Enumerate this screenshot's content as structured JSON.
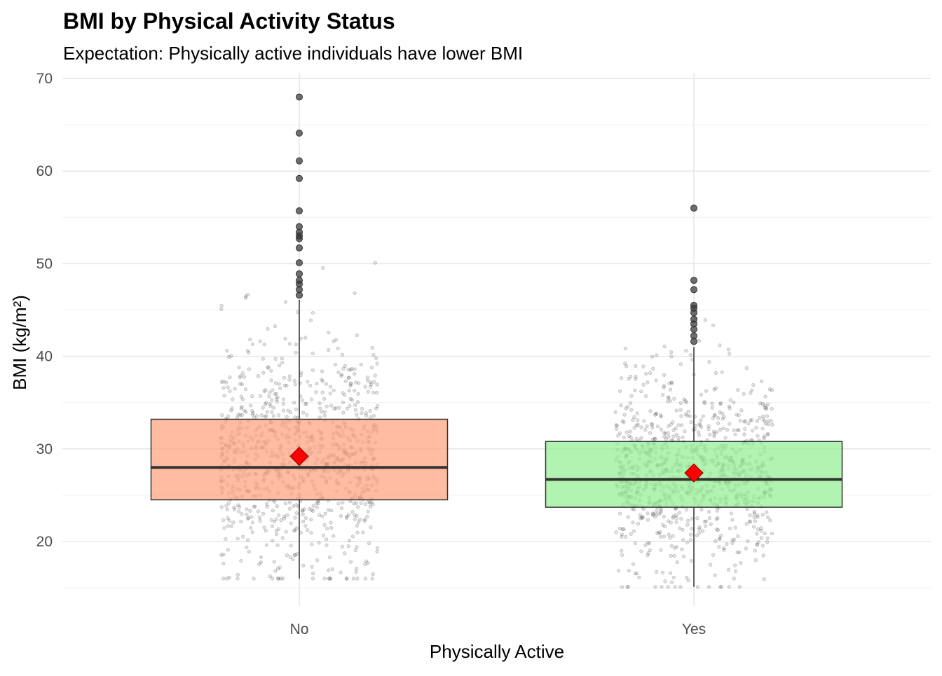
{
  "chart_data": {
    "type": "box",
    "title": "BMI by Physical Activity Status",
    "subtitle": "Expectation: Physically active individuals have lower BMI",
    "xlabel": "Physically Active",
    "ylabel": "BMI (kg/m²)",
    "ylim": [
      13,
      70.6
    ],
    "yticks": [
      "20",
      "30",
      "40",
      "50",
      "60",
      "70"
    ],
    "grid": true,
    "categories": [
      "No",
      "Yes"
    ],
    "series": [
      {
        "name": "No",
        "color": "#FFA07A",
        "q1": 24.5,
        "median": 28.0,
        "q3": 33.2,
        "whisker_low": 16.0,
        "whisker_high": 46.1,
        "mean": 29.2,
        "outliers": [
          68.0,
          64.1,
          61.1,
          59.2,
          55.7,
          54.0,
          53.4,
          53.0,
          52.7,
          51.7,
          50.1,
          48.9,
          48.2,
          47.8,
          47.2,
          46.6
        ]
      },
      {
        "name": "Yes",
        "color": "#90EE90",
        "q1": 23.7,
        "median": 26.7,
        "q3": 30.8,
        "whisker_low": 15.1,
        "whisker_high": 41.0,
        "mean": 27.4,
        "outliers": [
          56.0,
          48.2,
          47.2,
          45.5,
          45.2,
          44.7,
          44.0,
          43.5,
          42.9,
          42.2,
          41.6
        ]
      }
    ],
    "mean_marker_color": "#FF0000",
    "jitter_points_per_group": 900
  }
}
